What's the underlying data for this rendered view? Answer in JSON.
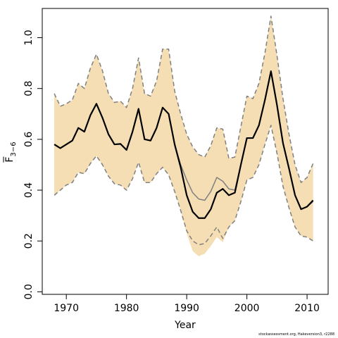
{
  "chart_data": {
    "type": "line",
    "xlabel": "Year",
    "ylabel": {
      "base": "F",
      "sub": "3−6"
    },
    "xlim": [
      1966,
      2013.5
    ],
    "ylim": [
      -0.01,
      1.115
    ],
    "xticks": [
      1970,
      1980,
      1990,
      2000,
      2010
    ],
    "yticks": [
      0.0,
      0.2,
      0.4,
      0.6,
      0.8,
      1.0
    ],
    "ytick_labels": [
      "0.0",
      "0.2",
      "0.4",
      "0.6",
      "0.8",
      "1.0"
    ],
    "grid": false,
    "band_color": "#F5DEB3",
    "x": [
      1968,
      1969,
      1970,
      1971,
      1972,
      1973,
      1974,
      1975,
      1976,
      1977,
      1978,
      1979,
      1980,
      1981,
      1982,
      1983,
      1984,
      1985,
      1986,
      1987,
      1988,
      1989,
      1990,
      1991,
      1992,
      1993,
      1994,
      1995,
      1996,
      1997,
      1998,
      1999,
      2000,
      2001,
      2002,
      2003,
      2004,
      2005,
      2006,
      2007,
      2008,
      2009,
      2010,
      2011
    ],
    "series": [
      {
        "role": "estimate",
        "color": "#000000",
        "style": "solid",
        "values": [
          0.58,
          0.565,
          0.58,
          0.595,
          0.645,
          0.63,
          0.695,
          0.74,
          0.685,
          0.62,
          0.58,
          0.582,
          0.558,
          0.63,
          0.72,
          0.6,
          0.595,
          0.645,
          0.725,
          0.7,
          0.58,
          0.49,
          0.38,
          0.315,
          0.29,
          0.29,
          0.325,
          0.39,
          0.405,
          0.38,
          0.39,
          0.5,
          0.605,
          0.605,
          0.655,
          0.755,
          0.868,
          0.735,
          0.585,
          0.485,
          0.38,
          0.325,
          0.335,
          0.36
        ]
      },
      {
        "role": "retrospective",
        "color": "#808080",
        "style": "solid",
        "values": [
          0.58,
          0.565,
          0.58,
          0.595,
          0.645,
          0.63,
          0.695,
          0.74,
          0.685,
          0.62,
          0.58,
          0.582,
          0.558,
          0.63,
          0.72,
          0.6,
          0.595,
          0.645,
          0.725,
          0.7,
          0.58,
          0.5,
          0.44,
          0.39,
          0.365,
          0.36,
          0.395,
          0.45,
          0.435,
          0.405,
          0.4,
          0.5,
          0.605,
          0.605,
          0.655,
          0.755,
          0.868,
          0.735,
          0.585,
          0.485,
          0.38,
          0.325,
          0.335,
          0.355
        ]
      },
      {
        "role": "band_upper",
        "color": "#808080",
        "style": "dashed",
        "values": [
          0.78,
          0.73,
          0.74,
          0.755,
          0.82,
          0.8,
          0.88,
          0.935,
          0.87,
          0.78,
          0.745,
          0.75,
          0.725,
          0.8,
          0.92,
          0.78,
          0.77,
          0.83,
          0.955,
          0.955,
          0.79,
          0.7,
          0.62,
          0.57,
          0.54,
          0.53,
          0.575,
          0.645,
          0.64,
          0.525,
          0.53,
          0.65,
          0.77,
          0.76,
          0.82,
          0.94,
          1.085,
          0.93,
          0.76,
          0.62,
          0.5,
          0.43,
          0.45,
          0.505
        ]
      },
      {
        "role": "band_lower",
        "color": "#808080",
        "style": "dashed",
        "values": [
          0.38,
          0.4,
          0.42,
          0.43,
          0.47,
          0.465,
          0.505,
          0.535,
          0.5,
          0.455,
          0.425,
          0.42,
          0.4,
          0.445,
          0.51,
          0.43,
          0.43,
          0.465,
          0.49,
          0.46,
          0.395,
          0.32,
          0.24,
          0.2,
          0.185,
          0.19,
          0.22,
          0.255,
          0.21,
          0.255,
          0.28,
          0.355,
          0.44,
          0.45,
          0.5,
          0.58,
          0.655,
          0.545,
          0.415,
          0.33,
          0.255,
          0.22,
          0.215,
          0.2
        ]
      },
      {
        "role": "band_fill_lower",
        "color": "#F5DEB3",
        "style": "fill",
        "values": [
          0.38,
          0.4,
          0.42,
          0.43,
          0.47,
          0.465,
          0.505,
          0.535,
          0.5,
          0.455,
          0.425,
          0.42,
          0.4,
          0.445,
          0.51,
          0.43,
          0.43,
          0.465,
          0.49,
          0.46,
          0.395,
          0.32,
          0.23,
          0.16,
          0.14,
          0.15,
          0.18,
          0.215,
          0.195,
          0.255,
          0.28,
          0.355,
          0.44,
          0.45,
          0.5,
          0.58,
          0.655,
          0.545,
          0.415,
          0.33,
          0.255,
          0.22,
          0.215,
          0.2
        ]
      }
    ],
    "credit": "stockassessment.org, Hakeversion3, r2288"
  }
}
